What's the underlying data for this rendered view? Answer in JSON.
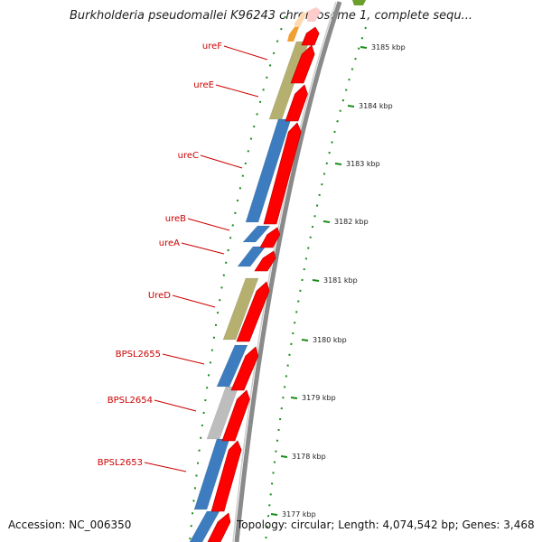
{
  "title": "Burkholderia pseudomallei K96243 chromosome 1, complete sequ...",
  "footer": {
    "accession": "Accession: NC_006350",
    "summary": "Topology: circular; Length: 4,074,542 bp; Genes: 3,468"
  },
  "colors": {
    "cds_red": "#ff0000",
    "cog_blue": "#3d7dbf",
    "cog_olive": "#b5b070",
    "cog_grey": "#bdbdbd",
    "cog_orange": "#f0a030",
    "cog_green": "#6aa02a",
    "backbone": "#888888",
    "tick_green": "#1a8c1a",
    "label_red": "#cc0000"
  },
  "genes": [
    {
      "label": "ureF"
    },
    {
      "label": "ureE"
    },
    {
      "label": "ureC"
    },
    {
      "label": "ureB"
    },
    {
      "label": "ureA"
    },
    {
      "label": "UreD"
    },
    {
      "label": "BPSL2655"
    },
    {
      "label": "BPSL2654"
    },
    {
      "label": "BPSL2653"
    }
  ],
  "scale_ticks": [
    {
      "label": "3185 kbp"
    },
    {
      "label": "3184 kbp"
    },
    {
      "label": "3183 kbp"
    },
    {
      "label": "3182 kbp"
    },
    {
      "label": "3181 kbp"
    },
    {
      "label": "3180 kbp"
    },
    {
      "label": "3179 kbp"
    },
    {
      "label": "3178 kbp"
    },
    {
      "label": "3177 kbp"
    }
  ]
}
